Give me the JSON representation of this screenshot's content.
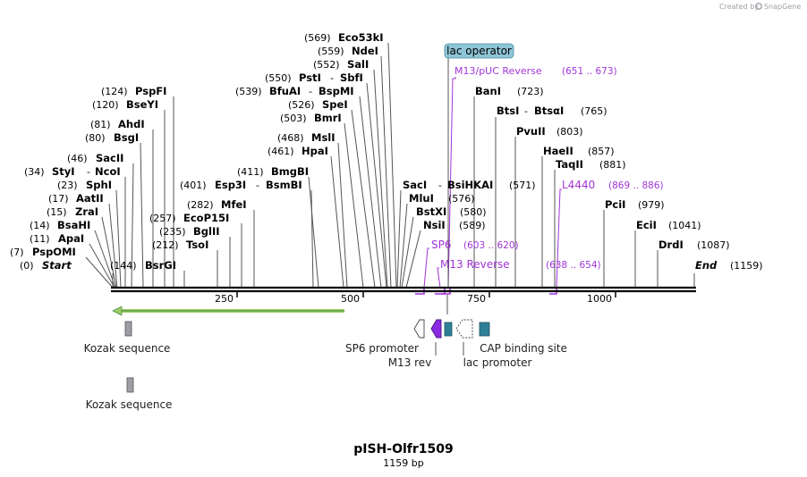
{
  "header": {
    "credit": "Created by",
    "brand": "SnapGene"
  },
  "map": {
    "name": "pISH-Olfr1509",
    "length_label": "1159 bp",
    "length": 1159,
    "ruler_ticks": [
      {
        "value": 250,
        "label": "250"
      },
      {
        "value": 500,
        "label": "500"
      },
      {
        "value": 750,
        "label": "750"
      },
      {
        "value": 1000,
        "label": "1000"
      }
    ]
  },
  "sites": [
    {
      "pos": 0,
      "pos_label": "(0)",
      "name": "Start",
      "special": true
    },
    {
      "pos": 7,
      "pos_label": "(7)",
      "name": "PspOMI"
    },
    {
      "pos": 11,
      "pos_label": "(11)",
      "name": "ApaI"
    },
    {
      "pos": 14,
      "pos_label": "(14)",
      "name": "BsaHI"
    },
    {
      "pos": 15,
      "pos_label": "(15)",
      "name": "ZraI"
    },
    {
      "pos": 17,
      "pos_label": "(17)",
      "name": "AatII"
    },
    {
      "pos": 23,
      "pos_label": "(23)",
      "name": "SphI"
    },
    {
      "pos": 34,
      "pos_label": "(34)",
      "name": "StyI",
      "name2": "NcoI"
    },
    {
      "pos": 46,
      "pos_label": "(46)",
      "name": "SacII"
    },
    {
      "pos": 80,
      "pos_label": "(80)",
      "name": "BsgI"
    },
    {
      "pos": 81,
      "pos_label": "(81)",
      "name": "AhdI"
    },
    {
      "pos": 120,
      "pos_label": "(120)",
      "name": "BseYI"
    },
    {
      "pos": 124,
      "pos_label": "(124)",
      "name": "PspFI"
    },
    {
      "pos": 144,
      "pos_label": "(144)",
      "name": "BsrGI",
      "pos_first": true
    },
    {
      "pos": 212,
      "pos_label": "(212)",
      "name": "TsoI"
    },
    {
      "pos": 235,
      "pos_label": "(235)",
      "name": "BglII"
    },
    {
      "pos": 257,
      "pos_label": "(257)",
      "name": "EcoP15I"
    },
    {
      "pos": 282,
      "pos_label": "(282)",
      "name": "MfeI"
    },
    {
      "pos": 401,
      "pos_label": "(401)",
      "name": "Esp3I",
      "name2": "BsmBI"
    },
    {
      "pos": 411,
      "pos_label": "(411)",
      "name": "BmgBI"
    },
    {
      "pos": 461,
      "pos_label": "(461)",
      "name": "HpaI"
    },
    {
      "pos": 468,
      "pos_label": "(468)",
      "name": "MslI"
    },
    {
      "pos": 503,
      "pos_label": "(503)",
      "name": "BmrI"
    },
    {
      "pos": 526,
      "pos_label": "(526)",
      "name": "SpeI"
    },
    {
      "pos": 539,
      "pos_label": "(539)",
      "name": "BfuAI",
      "name2": "BspMI"
    },
    {
      "pos": 550,
      "pos_label": "(550)",
      "name": "PstI",
      "name2": "SbfI"
    },
    {
      "pos": 552,
      "pos_label": "(552)",
      "name": "SalI"
    },
    {
      "pos": 559,
      "pos_label": "(559)",
      "name": "NdeI"
    },
    {
      "pos": 569,
      "pos_label": "(569)",
      "name": "Eco53kI"
    },
    {
      "pos": 571,
      "pos_label": "(571)",
      "name": "SacI",
      "name2": "BsiHKAI"
    },
    {
      "pos": 576,
      "pos_label": "(576)",
      "name": "MluI"
    },
    {
      "pos": 580,
      "pos_label": "(580)",
      "name": "BstXI"
    },
    {
      "pos": 589,
      "pos_label": "(589)",
      "name": "NsiI"
    },
    {
      "pos": 723,
      "pos_label": "(723)",
      "name": "BanI"
    },
    {
      "pos": 765,
      "pos_label": "(765)",
      "name": "BtsI",
      "name2": "BtsαI"
    },
    {
      "pos": 803,
      "pos_label": "(803)",
      "name": "PvuII"
    },
    {
      "pos": 857,
      "pos_label": "(857)",
      "name": "HaeII"
    },
    {
      "pos": 881,
      "pos_label": "(881)",
      "name": "TaqII"
    },
    {
      "pos": 979,
      "pos_label": "(979)",
      "name": "PciI"
    },
    {
      "pos": 1041,
      "pos_label": "(1041)",
      "name": "EciI"
    },
    {
      "pos": 1087,
      "pos_label": "(1087)",
      "name": "DrdI"
    },
    {
      "pos": 1159,
      "pos_label": "(1159)",
      "name": "End",
      "special": true
    }
  ],
  "primers": [
    {
      "name": "M13/pUC Reverse",
      "range": "(651 .. 673)"
    },
    {
      "name": "L4440",
      "range": "(869 .. 886)"
    },
    {
      "name": "SP6",
      "range": "(603 .. 620)"
    },
    {
      "name": "M13 Reverse",
      "range": "(638 .. 654)"
    }
  ],
  "features": {
    "lac_operator": "lac operator",
    "kozak_1": "Kozak sequence",
    "kozak_2": "Kozak sequence",
    "sp6_promoter": "SP6 promoter",
    "m13_rev": "M13 rev",
    "lac_promoter": "lac promoter",
    "cap_site": "CAP binding site"
  },
  "colors": {
    "primer": "#a235d8",
    "orf_arrow": "#9ccc65",
    "lac_operator_box": "#8ec5d6",
    "cap_site": "#2e8096",
    "m13_rev": "#8a2be2",
    "kozak": "#9e9ea6"
  }
}
